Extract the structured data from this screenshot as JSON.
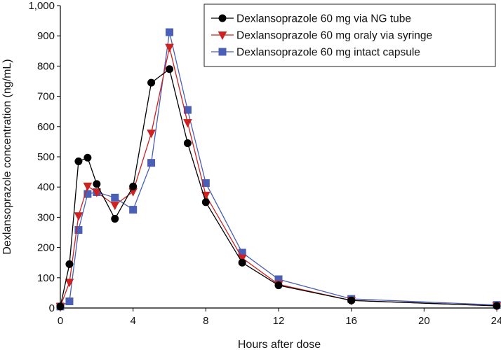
{
  "chart_data": {
    "type": "line",
    "xlabel": "Hours after dose",
    "ylabel": "Dexlansoprazole concentration (ng/mL)",
    "xlim": [
      0,
      24
    ],
    "ylim": [
      0,
      1000
    ],
    "x_ticks": [
      0,
      4,
      8,
      12,
      16,
      20,
      24
    ],
    "y_ticks": [
      0,
      100,
      200,
      300,
      400,
      500,
      600,
      700,
      800,
      900,
      1000
    ],
    "y_tick_labels": [
      "0",
      "100",
      "200",
      "300",
      "400",
      "500",
      "600",
      "700",
      "800",
      "900",
      "1,000"
    ],
    "grid": false,
    "legend_position": "top-right",
    "series": [
      {
        "name": "Dexlansoprazole 60 mg via NG tube",
        "color": "#000000",
        "marker": "circle",
        "x": [
          0,
          0.5,
          1,
          1.5,
          2,
          3,
          4,
          5,
          6,
          7,
          8,
          10,
          12,
          16,
          24
        ],
        "y": [
          5,
          145,
          485,
          497,
          410,
          295,
          402,
          745,
          790,
          545,
          350,
          150,
          75,
          25,
          7
        ]
      },
      {
        "name": "Dexlansoprazole 60 mg oraly via syringe",
        "color": "#cc2222",
        "marker": "triangle-down",
        "x": [
          0,
          0.5,
          1,
          1.5,
          2,
          3,
          4,
          5,
          6,
          7,
          8,
          10,
          12,
          16,
          24
        ],
        "y": [
          5,
          85,
          305,
          403,
          383,
          340,
          385,
          578,
          862,
          613,
          373,
          165,
          78,
          25,
          7
        ]
      },
      {
        "name": "Dexlansoprazole 60 mg intact capsule",
        "color": "#4a5fb5",
        "marker": "square",
        "x": [
          0,
          0.5,
          1,
          1.5,
          2,
          3,
          4,
          5,
          6,
          7,
          8,
          10,
          12,
          16,
          24
        ],
        "y": [
          5,
          22,
          258,
          377,
          383,
          365,
          325,
          480,
          912,
          655,
          413,
          183,
          95,
          30,
          10
        ]
      }
    ]
  }
}
